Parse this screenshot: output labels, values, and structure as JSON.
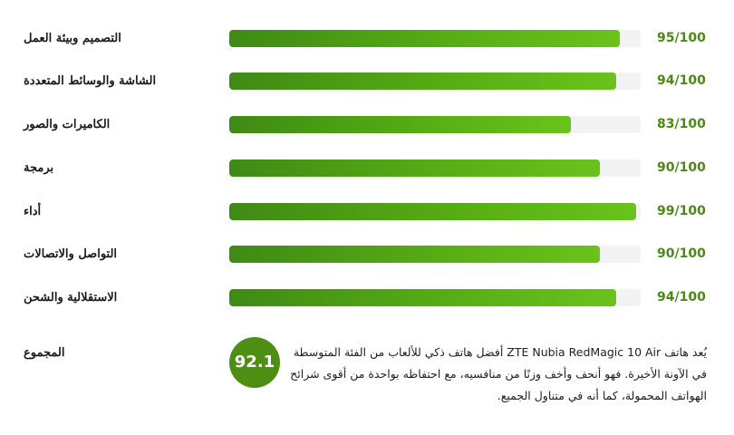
{
  "scores": [
    {
      "label": "التصميم وبيئة العمل",
      "value": 95,
      "score_text": "95/100"
    },
    {
      "label": "الشاشة والوسائط المتعددة",
      "value": 94,
      "score_text": "94/100"
    },
    {
      "label": "الكاميرات والصور",
      "value": 83,
      "score_text": "83/100"
    },
    {
      "label": "برمجة",
      "value": 90,
      "score_text": "90/100"
    },
    {
      "label": "أداء",
      "value": 99,
      "score_text": "99/100"
    },
    {
      "label": "التواصل والاتصالات",
      "value": 90,
      "score_text": "90/100"
    },
    {
      "label": "الاستقلالية والشحن",
      "value": 94,
      "score_text": "94/100"
    }
  ],
  "total": {
    "label": "المجموع",
    "value": "92.1",
    "summary": "يُعد هاتف ZTE Nubia RedMagic 10 Air أفضل هاتف ذكي للألعاب من الفئة المتوسطة في الآونة الأخيرة. فهو أنحف وأخف وزنًا من منافسيه، مع احتفاظه بواحدة من أقوى شرائح الهواتف المحمولة، كما أنه في متناول الجميع."
  },
  "colors": {
    "accent": "#4e8f13",
    "bar_start": "#3f8a15",
    "bar_end": "#6ac31b",
    "track": "#f3f3f3"
  }
}
